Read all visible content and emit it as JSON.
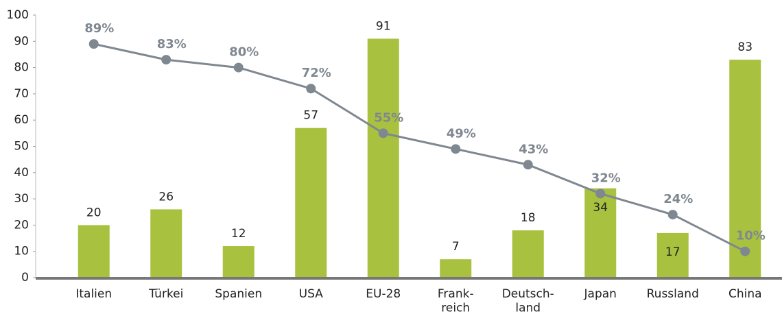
{
  "chart_data": {
    "type": "bar_line",
    "categories": [
      "Italien",
      "Türkei",
      "Spanien",
      "USA",
      "EU-28",
      "Frank-\nreich",
      "Deutsch-\nland",
      "Japan",
      "Russland",
      "China"
    ],
    "series": [
      {
        "type": "bar",
        "color": "#a8c23f",
        "values": [
          20,
          26,
          12,
          57,
          91,
          7,
          18,
          34,
          17,
          83
        ]
      },
      {
        "type": "line",
        "color": "#7f8790",
        "values": [
          89,
          83,
          80,
          72,
          55,
          49,
          43,
          32,
          24,
          10
        ],
        "value_labels": [
          "89%",
          "83%",
          "80%",
          "72%",
          "55%",
          "49%",
          "43%",
          "32%",
          "24%",
          "10%"
        ]
      }
    ],
    "ylim": [
      0,
      100
    ],
    "yticks": [
      0,
      10,
      20,
      30,
      40,
      50,
      60,
      70,
      80,
      90,
      100
    ]
  }
}
